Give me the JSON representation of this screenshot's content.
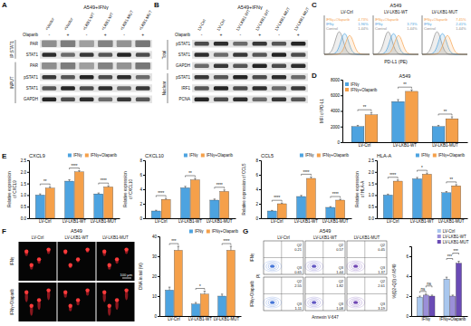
{
  "panel_labels": [
    "A",
    "B",
    "C",
    "D",
    "E",
    "F",
    "G"
  ],
  "blot_a": {
    "title": "A549+IFNγ",
    "drug_label": "Olaparib",
    "drug": [
      "-",
      "+",
      "-",
      "+",
      "-",
      "+"
    ],
    "columns": [
      "+Vector",
      "+Vector",
      "+LKB1-WT",
      "+LKB1-WT",
      "+LKB1-MUT",
      "+LKB1-MUT"
    ],
    "groups": [
      {
        "label": "IP:STAT1",
        "rows": [
          "PAR",
          "STAT1"
        ]
      },
      {
        "label": "INPUT",
        "rows": [
          "PAR",
          "pSTAT1",
          "STAT1",
          "GAPDH"
        ]
      }
    ]
  },
  "blot_b": {
    "title": "A549+IFNγ",
    "drug_label": "Olaparib",
    "drug": [
      "-",
      "+",
      "-",
      "+",
      "-",
      "+"
    ],
    "columns": [
      "LV-Ctrl",
      "LV-Ctrl",
      "LV-LKB1-WT",
      "LV-LKB1-WT",
      "LV-LKB1-MUT",
      "LV-LKB1-MUT"
    ],
    "groups": [
      {
        "label": "Total",
        "rows": [
          "pSTAT1",
          "STAT1",
          "GAPDH"
        ]
      },
      {
        "label": "Nuclear",
        "rows": [
          "pSTAT1",
          "IRF1",
          "PCNA"
        ]
      }
    ]
  },
  "histograms_c": {
    "title": "A549",
    "x_label": "PD-L1 (PE)",
    "curve_labels": [
      "IFNγ+Olaparib",
      "IFNγ",
      "Control"
    ],
    "plots": [
      {
        "label": "LV-Ctrl",
        "percents": [
          "4.73%",
          "1.96%",
          "1.44%"
        ]
      },
      {
        "label": "LV-LKB1-WT",
        "percents": [
          "3.73%",
          "1.44%"
        ]
      },
      {
        "label": "LV-LKB1-MUT",
        "percents": [
          "7.45%",
          "2.41%",
          "1.44%"
        ]
      }
    ]
  },
  "comet_f": {
    "title": "A549",
    "columns": [
      "LV-Ctrl",
      "LV-LKB1-WT",
      "LV-LKB1-MUT"
    ],
    "rows": [
      "IFNγ",
      "IFNγ+Olaparib"
    ],
    "scale_bar": "100 μm"
  },
  "flow_g": {
    "title": "A549",
    "columns": [
      "LV-Ctrl",
      "LV-LKB1-WT",
      "LV-LKB1-MUT"
    ],
    "rows": [
      "IFNγ",
      "IFNγ+Olaparib"
    ],
    "x_label": "Annexin V-647",
    "y_label": "PI",
    "quadrant_labels": [
      "Q2",
      "Q3"
    ],
    "values": [
      [
        [
          0.21,
          0.65
        ],
        [
          0.57,
          1.44
        ],
        [
          0.45,
          1.37
        ]
      ],
      [
        [
          2.55,
          1.11
        ],
        [
          1.82,
          1.08
        ],
        [
          2.61,
          3.19
        ]
      ]
    ]
  },
  "chart_data": [
    {
      "type": "bar",
      "title": "A549",
      "y_label": "MFI of PD-L1",
      "categories": [
        "LV-Ctrl",
        "LV-LKB1-WT",
        "LV-LKB1-MUT"
      ],
      "series": [
        {
          "name": "IFNγ",
          "color": "#4da3e0",
          "values": [
            2000,
            5200,
            2000
          ],
          "errors": [
            150,
            250,
            150
          ]
        },
        {
          "name": "IFNγ+Olaparib",
          "color": "#f5a04a",
          "values": [
            3500,
            6500,
            3000
          ],
          "errors": [
            300,
            200,
            250
          ]
        }
      ],
      "ylim": [
        0,
        8000
      ],
      "yticks": [
        0,
        2000,
        4000,
        6000,
        8000
      ],
      "legend": "top-left",
      "annotations": [
        "**",
        "**",
        "**"
      ]
    },
    {
      "type": "bar",
      "title": "CXCL9",
      "y_label": "Relative expression of CXCL9",
      "categories": [
        "LV-Ctrl",
        "LV-LKB1-WT",
        "LV-LKB1-MUT"
      ],
      "series": [
        {
          "name": "IFNγ",
          "color": "#4da3e0",
          "values": [
            1,
            1.6,
            1.05
          ],
          "errors": [
            0.05,
            0.06,
            0.04
          ]
        },
        {
          "name": "IFNγ+Olaparib",
          "color": "#f5a04a",
          "values": [
            1.3,
            2,
            1.35
          ],
          "errors": [
            0.06,
            0.05,
            0.05
          ]
        }
      ],
      "ylim": [
        0,
        2.5
      ],
      "yticks": [
        {
          "value": 0,
          "label": "0.0"
        },
        0.5,
        {
          "value": 1,
          "label": "1.0"
        },
        1.5,
        {
          "value": 2,
          "label": "2.0"
        },
        2.5
      ],
      "legend": "top-right",
      "annotations": [
        "**",
        "****",
        "****"
      ]
    },
    {
      "type": "bar",
      "title": "CXCL10",
      "y_label": "Relative expression of CXCL10",
      "categories": [
        "LV-Ctrl",
        "LV-LKB1-WT",
        "LV-LKB1-MUT"
      ],
      "series": [
        {
          "name": "IFNγ",
          "color": "#4da3e0",
          "values": [
            1,
            4.2,
            2.5
          ],
          "errors": [
            0.1,
            0.2,
            0.15
          ]
        },
        {
          "name": "IFNγ+Olaparib",
          "color": "#f5a04a",
          "values": [
            2.6,
            5.3,
            3.7
          ],
          "errors": [
            0.15,
            0.2,
            0.2
          ]
        }
      ],
      "ylim": [
        0,
        8
      ],
      "yticks": [
        0,
        2,
        4,
        6,
        8
      ],
      "legend": "top-right",
      "annotations": [
        "****",
        "**",
        "****"
      ]
    },
    {
      "type": "bar",
      "title": "CCL5",
      "y_label": "Relative expression of CCL5",
      "categories": [
        "LV-Ctrl",
        "LV-LKB1-WT",
        "LV-LKB1-MUT"
      ],
      "series": [
        {
          "name": "IFNγ",
          "color": "#4da3e0",
          "values": [
            1,
            3,
            1.5
          ],
          "errors": [
            0.08,
            0.15,
            0.1
          ]
        },
        {
          "name": "IFNγ+Olaparib",
          "color": "#f5a04a",
          "values": [
            2,
            5.5,
            2.5
          ],
          "errors": [
            0.1,
            0.2,
            0.12
          ]
        }
      ],
      "ylim": [
        0,
        8
      ],
      "yticks": [
        0,
        2,
        4,
        6,
        8
      ],
      "legend": "top-right",
      "annotations": [
        "****",
        "****",
        "****"
      ]
    },
    {
      "type": "bar",
      "title": "HLA-A",
      "y_label": "Relative expression of HLA-A",
      "categories": [
        "LV-Ctrl",
        "LV-LKB1-WT",
        "LV-LKB1-MUT"
      ],
      "series": [
        {
          "name": "IFNγ",
          "color": "#4da3e0",
          "values": [
            1,
            1.7,
            1.1
          ],
          "errors": [
            0.04,
            0.06,
            0.05
          ]
        },
        {
          "name": "IFNγ+Olaparib",
          "color": "#f5a04a",
          "values": [
            1.6,
            1.9,
            1.4
          ],
          "errors": [
            0.05,
            0.05,
            0.05
          ]
        }
      ],
      "ylim": [
        0,
        2.5
      ],
      "yticks": [
        {
          "value": 0,
          "label": "0.0"
        },
        0.5,
        {
          "value": 1,
          "label": "1.0"
        },
        1.5,
        {
          "value": 2,
          "label": "2.0"
        },
        2.5
      ],
      "legend": "top-right",
      "annotations": [
        "****",
        "*",
        "**"
      ]
    },
    {
      "type": "bar",
      "y_label": "DNA in tail (%)",
      "categories": [
        "LV-Ctrl",
        "LV-LKB1-WT",
        "LV-LKB1-MUT"
      ],
      "series": [
        {
          "name": "IFNγ",
          "color": "#4da3e0",
          "values": [
            13,
            6,
            10
          ],
          "errors": [
            1.5,
            0.8,
            1
          ]
        },
        {
          "name": "IFNγ+Olaparib",
          "color": "#f5a04a",
          "values": [
            33,
            11,
            33
          ],
          "errors": [
            2,
            1.5,
            2
          ]
        }
      ],
      "ylim": [
        0,
        40
      ],
      "yticks": [
        0,
        10,
        20,
        30,
        40
      ],
      "legend": "top-right",
      "annotations": [
        "***",
        "*",
        "****"
      ]
    },
    {
      "type": "bar",
      "y_label": "%(Q2+Q3) of A549",
      "categories": [
        "IFNγ",
        "IFNγ+Olaparib"
      ],
      "series": [
        {
          "name": "LV-Ctrl",
          "color": "#a9c7ee",
          "values": [
            1.9,
            3.7
          ],
          "errors": [
            0.1,
            0.2
          ]
        },
        {
          "name": "LV-LKB1-WT",
          "color": "#9b8fd8",
          "values": [
            2.1,
            2
          ],
          "errors": [
            0.1,
            0.1
          ]
        },
        {
          "name": "LV-LKB1-MUT",
          "color": "#6a4bb5",
          "values": [
            2,
            5.3
          ],
          "errors": [
            0.1,
            0.2
          ]
        }
      ],
      "ylim": [
        0,
        7
      ],
      "yticks": [
        0,
        2,
        4,
        6
      ],
      "legend": "top-right",
      "annotations": [
        "ns",
        "ns",
        "***",
        "***"
      ]
    }
  ]
}
